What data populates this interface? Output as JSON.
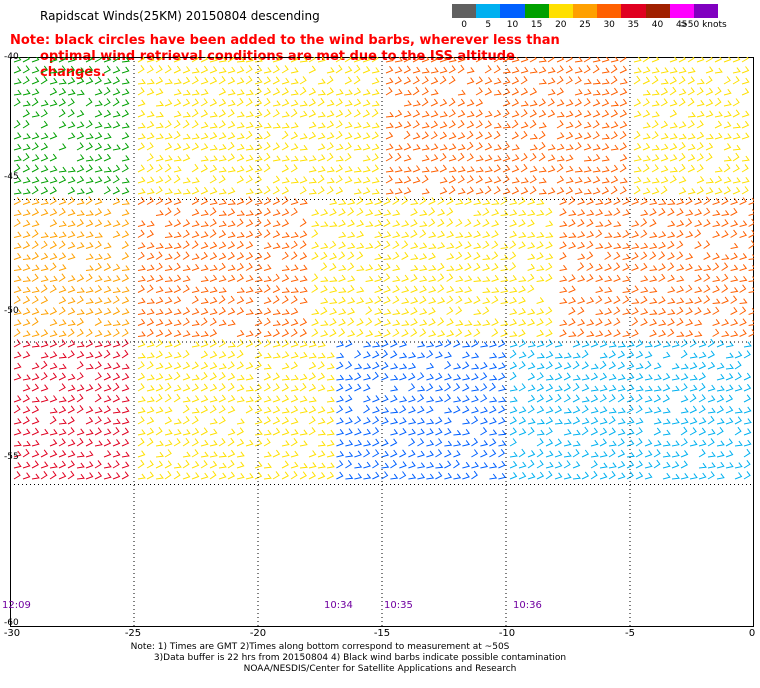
{
  "title": "Rapidscat Winds(25KM) 20150804 descending",
  "note_line1": "Note: black circles have been added to the wind barbs, wherever less than",
  "note_line2": "optimal wind retrieval conditions are met due to the ISS altitude changes.",
  "legend": {
    "colors": [
      "#606060",
      "#00b0f0",
      "#0060ff",
      "#00a000",
      "#ffe000",
      "#ffa000",
      "#ff6000",
      "#e00020",
      "#a02000",
      "#ff00ff",
      "#8000c0"
    ],
    "labels": [
      "0",
      "5",
      "10",
      "15",
      "20",
      "25",
      "30",
      "35",
      "40",
      "45",
      ">50 knots"
    ]
  },
  "lat_labels": [
    "-40",
    "-45",
    "-50",
    "-55",
    "-60"
  ],
  "lon_labels": [
    "-30",
    "-25",
    "-20",
    "-15",
    "-10",
    "-5",
    "0"
  ],
  "time_labels": [
    "12:09",
    "10:34",
    "10:35",
    "10:36"
  ],
  "footer": {
    "line1": "Note: 1) Times are GMT 2)Times along bottom correspond to measurement at ~50S",
    "line2": "3)Data buffer is 22 hrs from 20150804 4) Black wind barbs indicate possible contamination",
    "line3": "NOAA/NESDIS/Center for Satellite Applications and Research"
  },
  "map": {
    "lon_range": [
      -30,
      0
    ],
    "lat_range": [
      -40,
      -60
    ],
    "gridlines": true,
    "speed_regions": [
      {
        "lon": [
          -30,
          -25
        ],
        "lat": [
          -40,
          -45
        ],
        "speed_kt": 15
      },
      {
        "lon": [
          -25,
          -15
        ],
        "lat": [
          -40,
          -45
        ],
        "speed_kt": 20
      },
      {
        "lon": [
          -15,
          -5
        ],
        "lat": [
          -40,
          -45
        ],
        "speed_kt": 30
      },
      {
        "lon": [
          -5,
          0
        ],
        "lat": [
          -40,
          -45
        ],
        "speed_kt": 20
      },
      {
        "lon": [
          -30,
          -25
        ],
        "lat": [
          -45,
          -50
        ],
        "speed_kt": 25
      },
      {
        "lon": [
          -25,
          -18
        ],
        "lat": [
          -45,
          -50
        ],
        "speed_kt": 33
      },
      {
        "lon": [
          -18,
          -8
        ],
        "lat": [
          -45,
          -50
        ],
        "speed_kt": 22
      },
      {
        "lon": [
          -8,
          0
        ],
        "lat": [
          -45,
          -50
        ],
        "speed_kt": 30
      },
      {
        "lon": [
          -30,
          -25
        ],
        "lat": [
          -50,
          -55
        ],
        "speed_kt": 35
      },
      {
        "lon": [
          -25,
          -17
        ],
        "lat": [
          -50,
          -55
        ],
        "speed_kt": 22
      },
      {
        "lon": [
          -17,
          -10
        ],
        "lat": [
          -50,
          -55
        ],
        "speed_kt": 12
      },
      {
        "lon": [
          -10,
          0
        ],
        "lat": [
          -50,
          -55
        ],
        "speed_kt": 7
      }
    ]
  }
}
